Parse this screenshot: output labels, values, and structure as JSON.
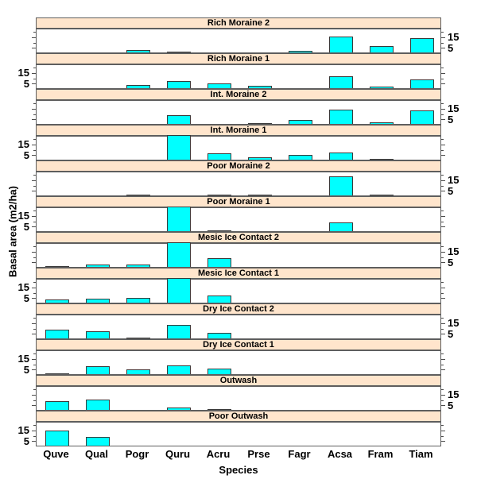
{
  "labels": {
    "ylabel": "Basal area (m2/ha)",
    "xlabel": "Species"
  },
  "colors": {
    "bar_fill": "#00FFFF",
    "bar_border": "#3a3a3a",
    "strip_bg": "#FFE5CC",
    "panel_border": "#5e5e5e",
    "text": "#000000"
  },
  "chart_data": {
    "type": "bar",
    "title": "",
    "xlabel": "Species",
    "ylabel": "Basal area (m2/ha)",
    "categories": [
      "Quve",
      "Qual",
      "Pogr",
      "Quru",
      "Acru",
      "Prse",
      "Fagr",
      "Acsa",
      "Fram",
      "Tiam"
    ],
    "y_axis": {
      "ticks": [
        5,
        10,
        15,
        20
      ],
      "labeled_ticks": [
        5,
        15
      ],
      "ylim": [
        0,
        21.5
      ],
      "note": "labels alternate right/left per panel, lattice style; bars taller than panel are clipped at panel top"
    },
    "layout": {
      "panels_stacked": 12,
      "grid": false,
      "legend": "none"
    },
    "panels": [
      {
        "label": "Rich Moraine 2",
        "label_side": "right",
        "values": [
          0,
          0,
          2,
          0.7,
          0,
          0,
          1.2,
          14.5,
          6,
          13.5
        ]
      },
      {
        "label": "Rich Moraine 1",
        "label_side": "left",
        "values": [
          0,
          0,
          3,
          7,
          4.5,
          2,
          0,
          11.5,
          1.5,
          8
        ]
      },
      {
        "label": "Int. Moraine 2",
        "label_side": "right",
        "values": [
          0,
          0,
          0,
          8,
          0,
          0.8,
          4,
          13.5,
          1.5,
          12.5
        ]
      },
      {
        "label": "Int. Moraine 1",
        "label_side": "left",
        "values": [
          0,
          0,
          0,
          22,
          6,
          2,
          4.5,
          6.5,
          1,
          0
        ]
      },
      {
        "label": "Poor Moraine 2",
        "label_side": "right",
        "values": [
          0,
          0,
          0.8,
          0,
          0.8,
          0.3,
          0,
          17.5,
          1,
          0
        ]
      },
      {
        "label": "Poor Moraine 1",
        "label_side": "left",
        "values": [
          0,
          0,
          0,
          22,
          0.3,
          0,
          0,
          8,
          0,
          0
        ]
      },
      {
        "label": "Mesic Ice Contact 2",
        "label_side": "right",
        "values": [
          0.8,
          2,
          2.5,
          22,
          8,
          0,
          0,
          0,
          0,
          0
        ]
      },
      {
        "label": "Mesic Ice Contact 1",
        "label_side": "left",
        "values": [
          3,
          3.5,
          4.3,
          22,
          7,
          0,
          0,
          0,
          0,
          0
        ]
      },
      {
        "label": "Dry Ice Contact 2",
        "label_side": "right",
        "values": [
          8,
          6.5,
          0.8,
          12.5,
          5,
          0,
          0,
          0,
          0,
          0
        ]
      },
      {
        "label": "Dry Ice Contact 1",
        "label_side": "left",
        "values": [
          0.4,
          7.5,
          4.5,
          8,
          5,
          0,
          0,
          0,
          0,
          0
        ]
      },
      {
        "label": "Outwash",
        "label_side": "right",
        "values": [
          8,
          9.5,
          0,
          2,
          0.4,
          0,
          0,
          0,
          0,
          0
        ]
      },
      {
        "label": "Poor Outwash",
        "label_side": "left",
        "values": [
          14,
          8,
          0,
          0,
          0,
          0,
          0,
          0,
          0,
          0
        ]
      }
    ]
  }
}
